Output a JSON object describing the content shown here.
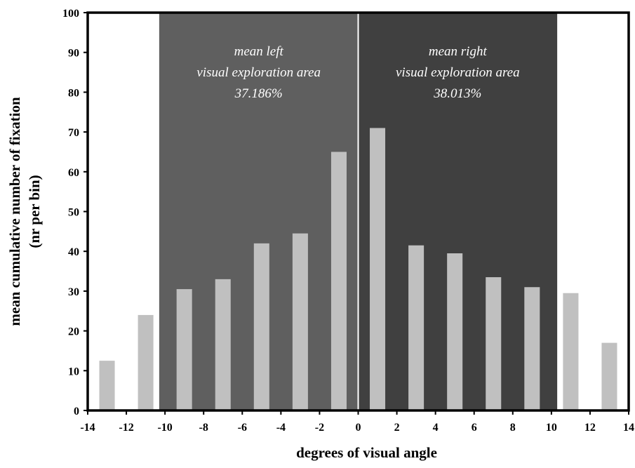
{
  "chart_data": {
    "type": "bar",
    "title": "",
    "xlabel": "degrees of visual angle",
    "ylabel_lines": [
      "mean cumulative number of fixation",
      "(nr per bin)"
    ],
    "xlim": [
      -14,
      14
    ],
    "ylim": [
      0,
      100
    ],
    "x_ticks": [
      -14,
      -12,
      -10,
      -8,
      -6,
      -4,
      -2,
      0,
      2,
      4,
      6,
      8,
      10,
      12,
      14
    ],
    "y_ticks": [
      0,
      10,
      20,
      30,
      40,
      50,
      60,
      70,
      80,
      90,
      100
    ],
    "grid": false,
    "bar_color": "#c0c0c0",
    "bar_width": 0.8,
    "bars": [
      {
        "x": -13,
        "value": 12.5
      },
      {
        "x": -11,
        "value": 24
      },
      {
        "x": -9,
        "value": 30.5
      },
      {
        "x": -7,
        "value": 33
      },
      {
        "x": -5,
        "value": 42
      },
      {
        "x": -3,
        "value": 44.5
      },
      {
        "x": -1,
        "value": 65
      },
      {
        "x": 1,
        "value": 71
      },
      {
        "x": 3,
        "value": 41.5
      },
      {
        "x": 5,
        "value": 39.5
      },
      {
        "x": 7,
        "value": 33.5
      },
      {
        "x": 9,
        "value": 31
      },
      {
        "x": 11,
        "value": 29.5
      },
      {
        "x": 13,
        "value": 17
      }
    ],
    "regions": [
      {
        "x_start": -10.3,
        "x_end": 0,
        "color": "#5f5f5f",
        "lines": [
          "mean left",
          "visual exploration area",
          "37.186%"
        ]
      },
      {
        "x_start": 0,
        "x_end": 10.3,
        "color": "#404040",
        "lines": [
          "mean right",
          "visual exploration area",
          "38.013%"
        ]
      }
    ],
    "center_line": {
      "x": 0,
      "color": "#ffffff"
    }
  }
}
